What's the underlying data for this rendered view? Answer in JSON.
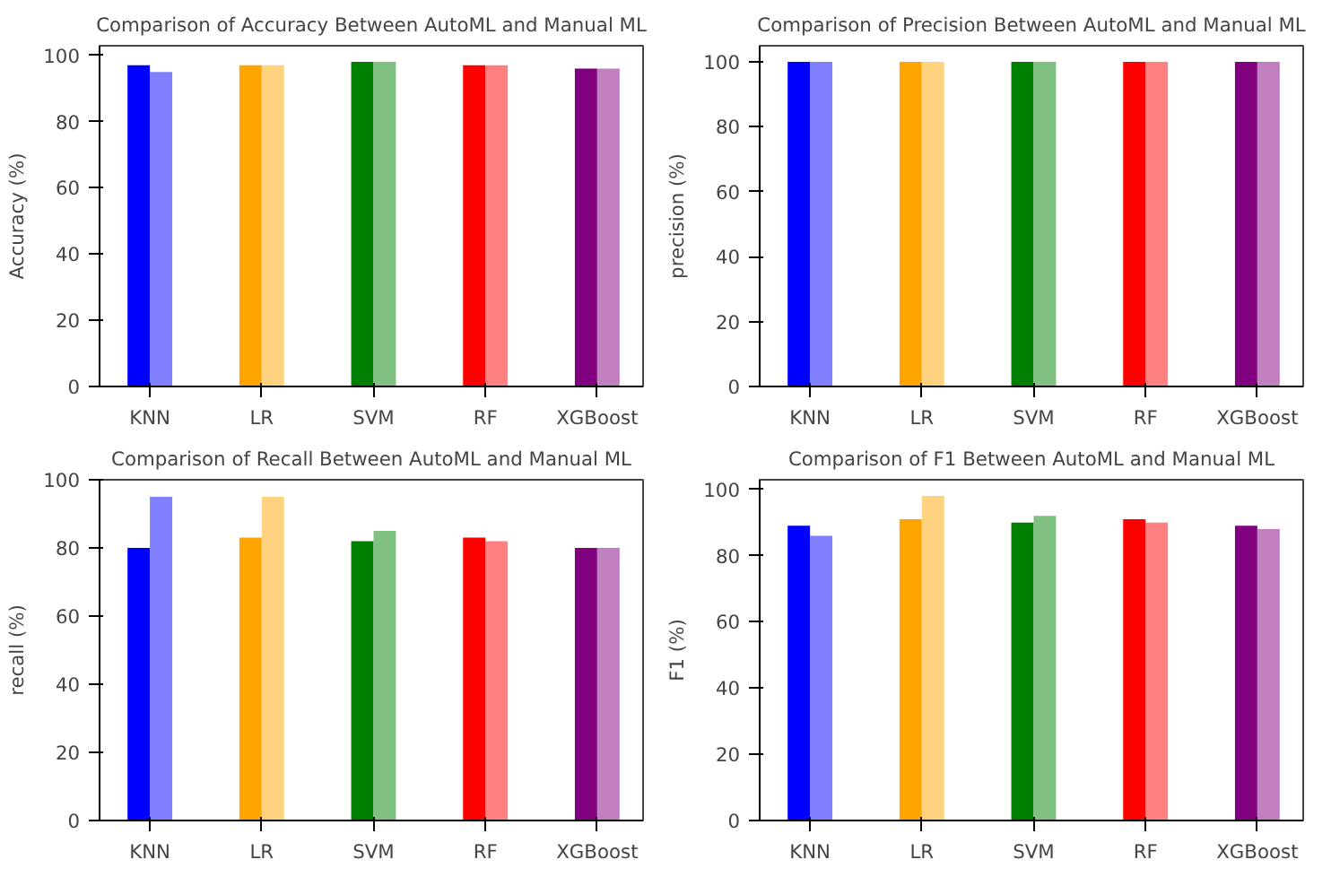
{
  "chart_data": [
    {
      "type": "bar",
      "title": "Comparison of Accuracy Between AutoML and Manual ML",
      "ylabel": "Accuracy (%)",
      "categories": [
        "KNN",
        "LR",
        "SVM",
        "RF",
        "XGBoost"
      ],
      "ylim": [
        0,
        102.9
      ],
      "yticks": [
        0,
        20,
        40,
        60,
        80,
        100
      ],
      "grid": false,
      "series": [
        {
          "values": [
            97,
            97,
            98,
            97,
            96
          ],
          "colors": [
            "#0000ff",
            "#ffa500",
            "#008000",
            "#ff0000",
            "#800080"
          ]
        },
        {
          "values": [
            95,
            97,
            98,
            97,
            96
          ],
          "colors": [
            "#8080ff",
            "#ffd280",
            "#80c080",
            "#ff8080",
            "#c080c0"
          ]
        }
      ]
    },
    {
      "type": "bar",
      "title": "Comparison of Precision Between AutoML and Manual ML",
      "ylabel": "precision (%)",
      "categories": [
        "KNN",
        "LR",
        "SVM",
        "RF",
        "XGBoost"
      ],
      "ylim": [
        0,
        105
      ],
      "yticks": [
        0,
        20,
        40,
        60,
        80,
        100
      ],
      "grid": false,
      "series": [
        {
          "values": [
            100,
            100,
            100,
            100,
            100
          ],
          "colors": [
            "#0000ff",
            "#ffa500",
            "#008000",
            "#ff0000",
            "#800080"
          ]
        },
        {
          "values": [
            100,
            100,
            100,
            100,
            100
          ],
          "colors": [
            "#8080ff",
            "#ffd280",
            "#80c080",
            "#ff8080",
            "#c080c0"
          ]
        }
      ]
    },
    {
      "type": "bar",
      "title": "Comparison of Recall Between AutoML and Manual ML",
      "ylabel": "recall (%)",
      "categories": [
        "KNN",
        "LR",
        "SVM",
        "RF",
        "XGBoost"
      ],
      "ylim": [
        0,
        100
      ],
      "yticks": [
        0,
        20,
        40,
        60,
        80,
        100
      ],
      "grid": false,
      "series": [
        {
          "values": [
            80,
            83,
            82,
            83,
            80
          ],
          "colors": [
            "#0000ff",
            "#ffa500",
            "#008000",
            "#ff0000",
            "#800080"
          ]
        },
        {
          "values": [
            95,
            95,
            85,
            82,
            80
          ],
          "colors": [
            "#8080ff",
            "#ffd280",
            "#80c080",
            "#ff8080",
            "#c080c0"
          ]
        }
      ]
    },
    {
      "type": "bar",
      "title": "Comparison of F1 Between AutoML and Manual ML",
      "ylabel": "F1 (%)",
      "categories": [
        "KNN",
        "LR",
        "SVM",
        "RF",
        "XGBoost"
      ],
      "ylim": [
        0,
        102.9
      ],
      "yticks": [
        0,
        20,
        40,
        60,
        80,
        100
      ],
      "grid": false,
      "series": [
        {
          "values": [
            89,
            91,
            90,
            91,
            89
          ],
          "colors": [
            "#0000ff",
            "#ffa500",
            "#008000",
            "#ff0000",
            "#800080"
          ]
        },
        {
          "values": [
            86,
            98,
            92,
            90,
            88
          ],
          "colors": [
            "#8080ff",
            "#ffd280",
            "#80c080",
            "#ff8080",
            "#c080c0"
          ]
        }
      ]
    }
  ]
}
